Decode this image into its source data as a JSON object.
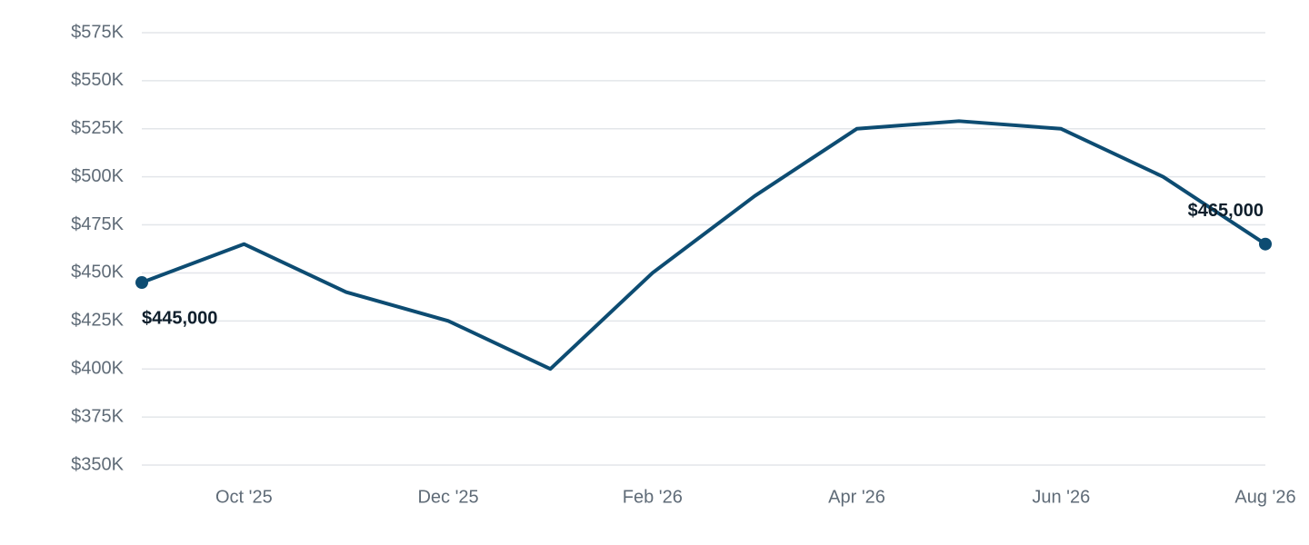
{
  "chart_data": {
    "type": "line",
    "categories": [
      null,
      "Oct '25",
      null,
      "Dec '25",
      null,
      "Feb '26",
      null,
      "Apr '26",
      null,
      "Jun '26",
      null,
      "Aug '26"
    ],
    "series": [
      {
        "color": "#0d4c72",
        "values": [
          445000,
          465000,
          440000,
          425000,
          400000,
          450000,
          490000,
          525000,
          529000,
          525000,
          500000,
          465000
        ],
        "value_labels": [
          "$445,000",
          null,
          null,
          null,
          null,
          null,
          null,
          null,
          null,
          null,
          null,
          "$465,000"
        ]
      }
    ],
    "ylim": [
      350000,
      575000
    ],
    "yticks": [
      {
        "value": 350000,
        "label": "$350K"
      },
      {
        "value": 375000,
        "label": "$375K"
      },
      {
        "value": 400000,
        "label": "$400K"
      },
      {
        "value": 425000,
        "label": "$425K"
      },
      {
        "value": 450000,
        "label": "$450K"
      },
      {
        "value": 475000,
        "label": "$475K"
      },
      {
        "value": 500000,
        "label": "$500K"
      },
      {
        "value": 525000,
        "label": "$525K"
      },
      {
        "value": 550000,
        "label": "$550K"
      },
      {
        "value": 575000,
        "label": "$575K"
      }
    ],
    "grid": true
  }
}
